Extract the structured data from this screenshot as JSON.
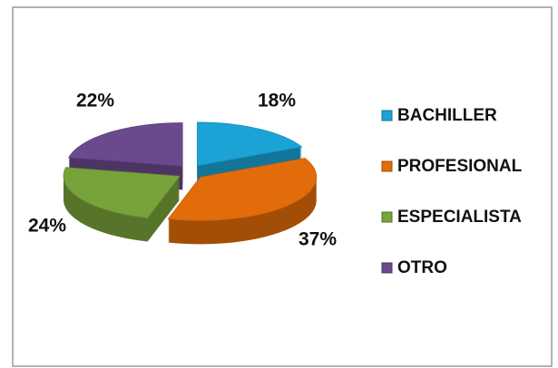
{
  "chart_data": {
    "type": "pie",
    "categories": [
      "BACHILLER",
      "PROFESIONAL",
      "ESPECIALISTA",
      "OTRO"
    ],
    "values": [
      18,
      37,
      24,
      22
    ],
    "value_labels": [
      "18%",
      "37%",
      "24%",
      "22%"
    ],
    "colors": [
      "#1ba3d6",
      "#e36c0a",
      "#77a33a",
      "#6a4a8c"
    ],
    "legend": "right"
  }
}
